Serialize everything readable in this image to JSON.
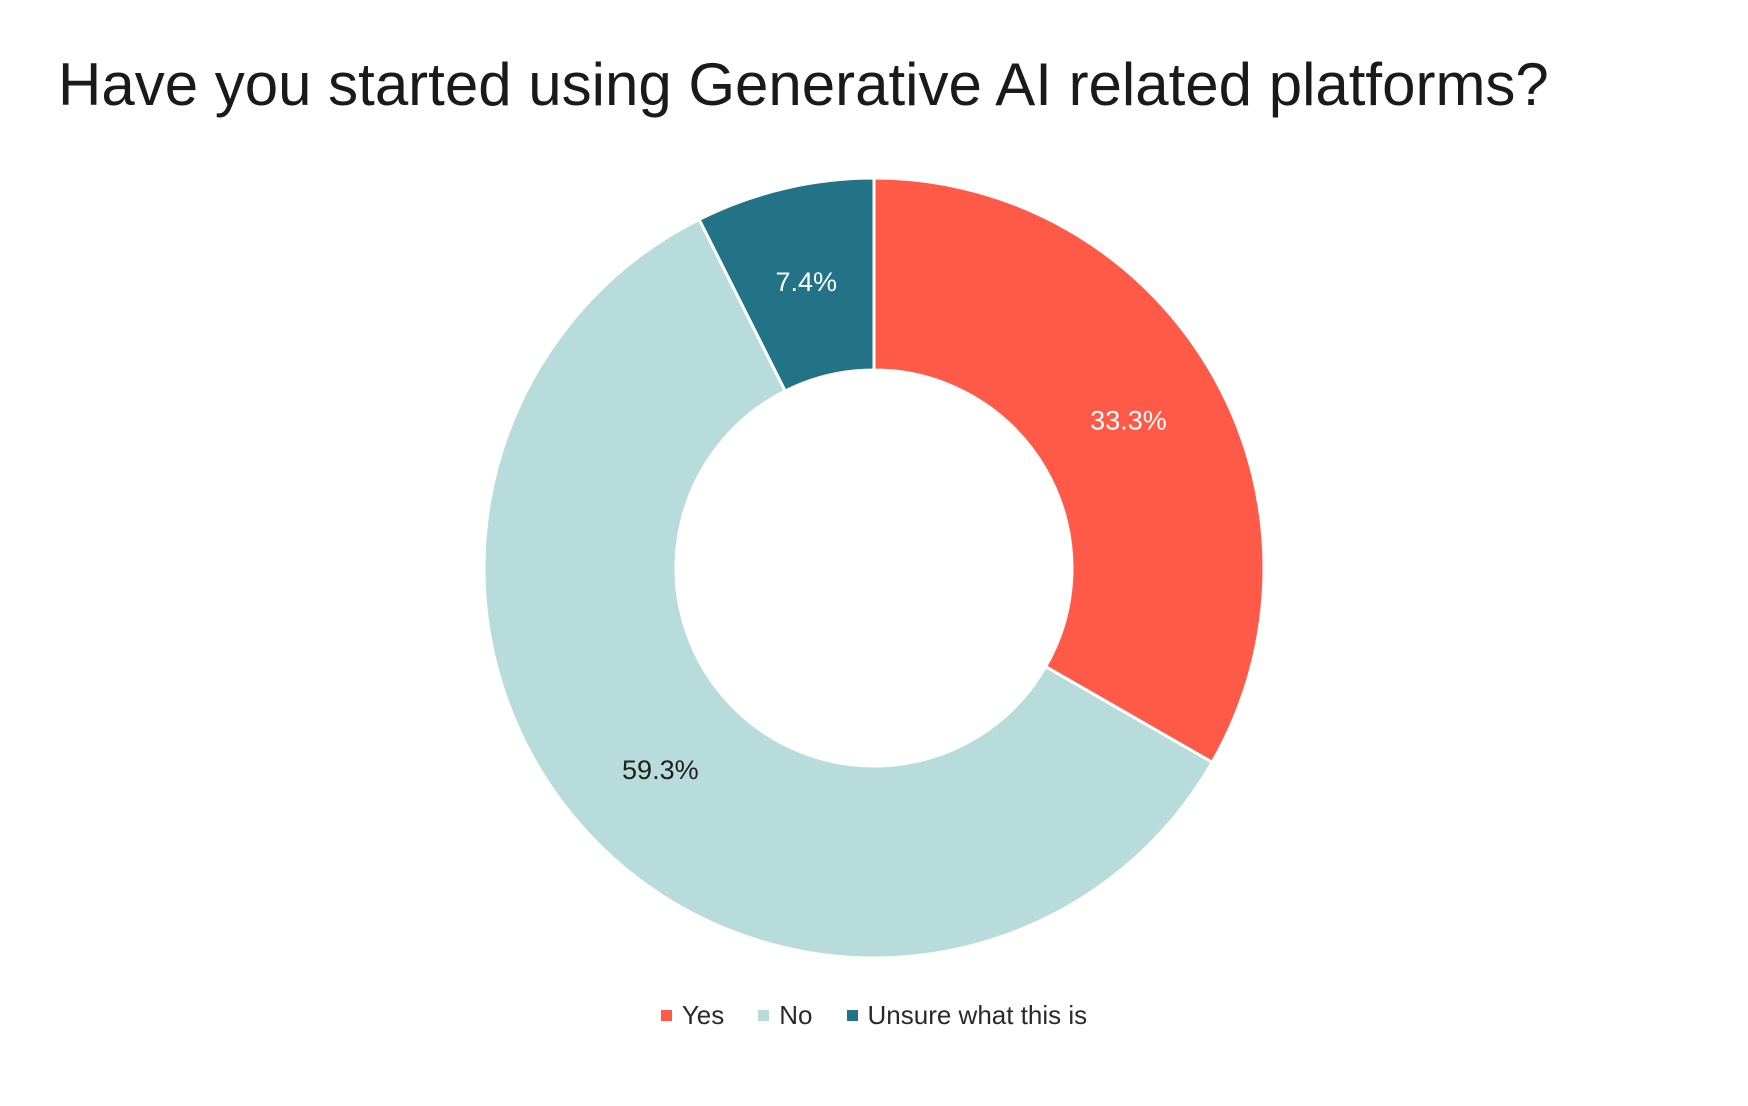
{
  "chart_data": {
    "type": "pie",
    "variant": "donut",
    "title": "Have you started using Generative AI related platforms?",
    "slices": [
      {
        "label": "Yes",
        "value": 33.3,
        "value_label": "33.3%",
        "color": "#ff5a48",
        "label_color": "#ffffff"
      },
      {
        "label": "No",
        "value": 59.3,
        "value_label": "59.3%",
        "color": "#b8dbdc",
        "label_color": "#1f1f1f"
      },
      {
        "label": "Unsure what this is",
        "value": 7.4,
        "value_label": "7.4%",
        "color": "#237387",
        "label_color": "#ffffff"
      }
    ],
    "legend_placement": "bottom-center"
  }
}
